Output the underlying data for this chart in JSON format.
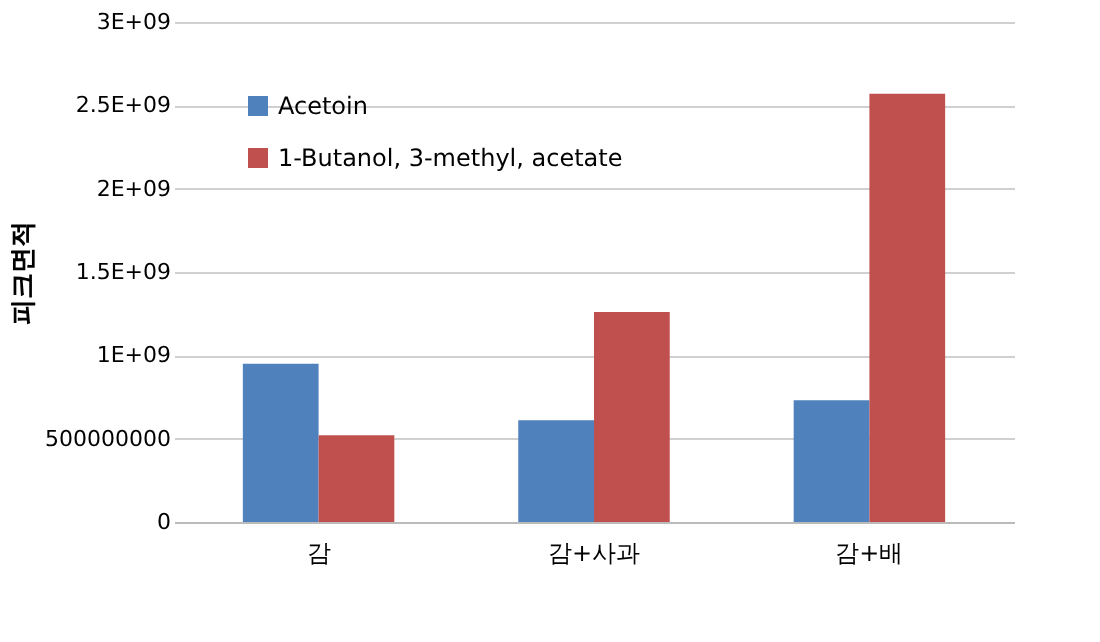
{
  "chart_data": {
    "type": "bar",
    "ylabel": "피크면적",
    "categories": [
      "감",
      "감+사과",
      "감+배"
    ],
    "series": [
      {
        "name": "Acetoin",
        "color": "#4f81bd",
        "values": [
          950000000,
          610000000,
          730000000
        ]
      },
      {
        "name": "1-Butanol, 3-methyl, acetate",
        "color": "#c0504d",
        "values": [
          520000000,
          1260000000,
          2570000000
        ]
      }
    ],
    "ylim": [
      0,
      3000000000
    ],
    "yticks": [
      0,
      500000000,
      {
        "value": 1000000000,
        "label": "1E+09"
      },
      {
        "value": 1500000000,
        "label": "1.5E+09"
      },
      {
        "value": 2000000000,
        "label": "2E+09"
      },
      {
        "value": 2500000000,
        "label": "2.5E+09"
      },
      {
        "value": 3000000000,
        "label": "3E+09"
      }
    ],
    "grid": "y",
    "legend": "top left"
  }
}
